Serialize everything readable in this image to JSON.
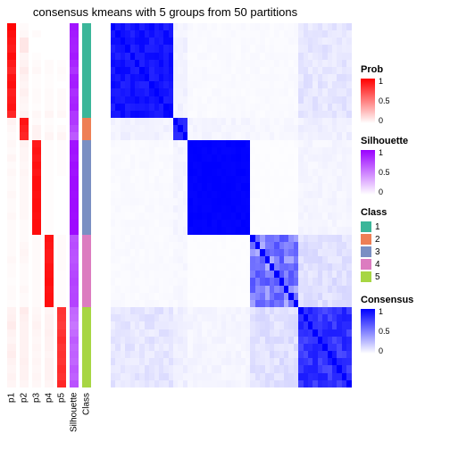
{
  "title": "consensus kmeans with 5 groups from 50 partitions",
  "layout": {
    "n": 50,
    "heatmap_h": 408,
    "anno_col_w": 10,
    "heat_w": 270,
    "heat_gap": 18,
    "title_fontsize": 13
  },
  "groups": {
    "sizes": [
      13,
      3,
      13,
      10,
      11
    ],
    "class_colors": [
      "#3bb699",
      "#ee7f55",
      "#7a8fc3",
      "#dc7cc0",
      "#a7d643"
    ]
  },
  "annotations": {
    "columns": [
      "p1",
      "p2",
      "p3",
      "p4",
      "p5",
      "Silhouette",
      "Class"
    ],
    "p_col_w": 10,
    "sil_col_w": 10,
    "class_col_w": 10,
    "prob": {
      "palette_low": "#ffffff",
      "palette_high": "#ff0000",
      "p1": [
        0.98,
        0.95,
        0.92,
        0.9,
        0.95,
        0.9,
        0.85,
        0.92,
        0.94,
        0.88,
        0.9,
        0.92,
        0.85,
        0.05,
        0.03,
        0.02,
        0.03,
        0.02,
        0.04,
        0.02,
        0.03,
        0.02,
        0.02,
        0.03,
        0.02,
        0.02,
        0.03,
        0.02,
        0.02,
        0.02,
        0.02,
        0.02,
        0.03,
        0.02,
        0.02,
        0.01,
        0.02,
        0.02,
        0.01,
        0.05,
        0.06,
        0.08,
        0.05,
        0.04,
        0.06,
        0.07,
        0.05,
        0.04,
        0.05,
        0.04
      ],
      "p2": [
        0.02,
        0.03,
        0.1,
        0.1,
        0.04,
        0.05,
        0.08,
        0.05,
        0.04,
        0.06,
        0.04,
        0.03,
        0.05,
        0.92,
        0.88,
        0.85,
        0.05,
        0.04,
        0.04,
        0.03,
        0.04,
        0.03,
        0.03,
        0.03,
        0.03,
        0.03,
        0.03,
        0.02,
        0.02,
        0.02,
        0.03,
        0.04,
        0.03,
        0.02,
        0.02,
        0.02,
        0.03,
        0.02,
        0.02,
        0.08,
        0.06,
        0.05,
        0.05,
        0.05,
        0.05,
        0.05,
        0.06,
        0.05,
        0.05,
        0.04
      ],
      "p3": [
        0.0,
        0.02,
        0.0,
        0.0,
        0.01,
        0.02,
        0.03,
        0.01,
        0.01,
        0.02,
        0.02,
        0.01,
        0.03,
        0.02,
        0.05,
        0.05,
        0.9,
        0.92,
        0.9,
        0.93,
        0.91,
        0.94,
        0.94,
        0.93,
        0.94,
        0.94,
        0.93,
        0.95,
        0.95,
        0.02,
        0.02,
        0.02,
        0.02,
        0.02,
        0.02,
        0.02,
        0.02,
        0.02,
        0.02,
        0.03,
        0.04,
        0.05,
        0.04,
        0.03,
        0.04,
        0.03,
        0.04,
        0.03,
        0.04,
        0.03
      ],
      "p4": [
        0.0,
        0.0,
        0.0,
        0.0,
        0.0,
        0.02,
        0.02,
        0.01,
        0.01,
        0.02,
        0.02,
        0.02,
        0.04,
        0.01,
        0.02,
        0.04,
        0.01,
        0.01,
        0.01,
        0.01,
        0.01,
        0.01,
        0.01,
        0.01,
        0.01,
        0.01,
        0.01,
        0.01,
        0.01,
        0.92,
        0.91,
        0.9,
        0.9,
        0.92,
        0.93,
        0.94,
        0.92,
        0.93,
        0.94,
        0.04,
        0.05,
        0.05,
        0.06,
        0.05,
        0.05,
        0.04,
        0.05,
        0.05,
        0.05,
        0.04
      ],
      "p5": [
        0.0,
        0.0,
        0.0,
        0.0,
        0.0,
        0.01,
        0.02,
        0.01,
        0.0,
        0.02,
        0.02,
        0.02,
        0.03,
        0.0,
        0.02,
        0.04,
        0.01,
        0.01,
        0.01,
        0.01,
        0.01,
        0.0,
        0.0,
        0.0,
        0.0,
        0.0,
        0.0,
        0.0,
        0.0,
        0.02,
        0.02,
        0.02,
        0.02,
        0.02,
        0.01,
        0.01,
        0.01,
        0.01,
        0.01,
        0.8,
        0.79,
        0.77,
        0.8,
        0.83,
        0.8,
        0.81,
        0.8,
        0.83,
        0.81,
        0.85
      ]
    },
    "silhouette": {
      "palette_low": "#ffffff",
      "palette_high": "#9a00ff",
      "values": [
        0.92,
        0.9,
        0.88,
        0.87,
        0.9,
        0.85,
        0.8,
        0.88,
        0.89,
        0.82,
        0.85,
        0.87,
        0.78,
        0.78,
        0.72,
        0.65,
        0.92,
        0.93,
        0.91,
        0.94,
        0.93,
        0.95,
        0.95,
        0.94,
        0.95,
        0.95,
        0.94,
        0.96,
        0.96,
        0.68,
        0.7,
        0.68,
        0.67,
        0.7,
        0.72,
        0.74,
        0.72,
        0.73,
        0.74,
        0.6,
        0.58,
        0.54,
        0.58,
        0.64,
        0.6,
        0.62,
        0.6,
        0.65,
        0.62,
        0.68
      ]
    },
    "class_by_row": [
      1,
      1,
      1,
      1,
      1,
      1,
      1,
      1,
      1,
      1,
      1,
      1,
      1,
      2,
      2,
      2,
      3,
      3,
      3,
      3,
      3,
      3,
      3,
      3,
      3,
      3,
      3,
      3,
      3,
      4,
      4,
      4,
      4,
      4,
      4,
      4,
      4,
      4,
      4,
      5,
      5,
      5,
      5,
      5,
      5,
      5,
      5,
      5,
      5,
      5
    ]
  },
  "heatmap": {
    "palette_low": "#ffffff",
    "palette_high": "#0000ff",
    "within_group_base": [
      0.92,
      0.85,
      0.99,
      0.5,
      0.8
    ],
    "within_group_noise": [
      0.12,
      0.05,
      0.02,
      0.4,
      0.2
    ],
    "between_group": {
      "1-2": 0.05,
      "1-3": 0.02,
      "1-4": 0.02,
      "1-5": 0.1,
      "2-3": 0.04,
      "2-4": 0.03,
      "2-5": 0.06,
      "3-4": 0.01,
      "3-5": 0.04,
      "4-5": 0.12
    }
  },
  "legends": {
    "prob": {
      "title": "Prob",
      "low": "#ffffff",
      "high": "#ff0000",
      "ticks": [
        1,
        0.5,
        0
      ]
    },
    "silhouette": {
      "title": "Silhouette",
      "low": "#ffffff",
      "high": "#9a00ff",
      "ticks": [
        1,
        0.5,
        0
      ]
    },
    "class": {
      "title": "Class",
      "items": [
        "1",
        "2",
        "3",
        "4",
        "5"
      ]
    },
    "consensus": {
      "title": "Consensus",
      "low": "#ffffff",
      "high": "#0000ff",
      "ticks": [
        1,
        0.5,
        0
      ]
    }
  }
}
